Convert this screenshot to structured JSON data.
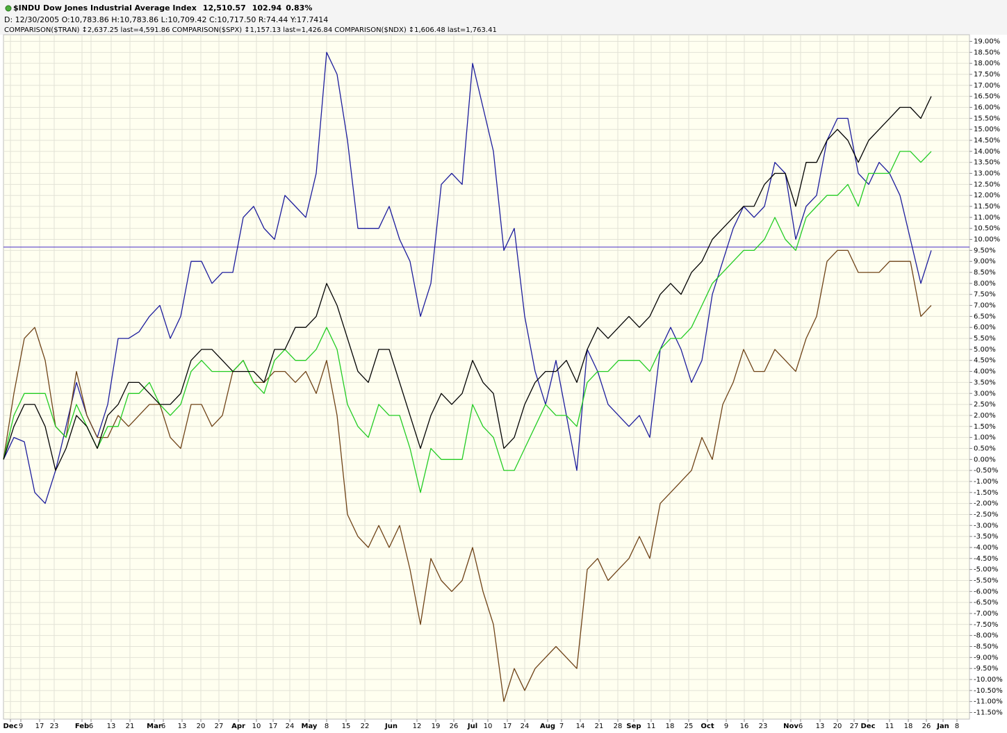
{
  "chart_data": {
    "type": "line",
    "title": "Dow Jones Industrial Average Index",
    "last": "12,510.57",
    "change": "102.94",
    "change_pct": "0.83%",
    "change_color": "#19b219",
    "ohlc": "D: 12/30/2005 O:10,783.86 H:10,783.86 L:10,709.42 C:10,717.50 R:74.44 Y:17.7414",
    "xlim": [
      0,
      278
    ],
    "ylim": [
      -11.8,
      19.3
    ],
    "grid": true,
    "hline": {
      "value": 9.65,
      "color": "#4b32c8"
    },
    "xticks": [
      {
        "value": 2,
        "label": "Dec"
      },
      {
        "value": 5,
        "label": "9"
      },
      {
        "value": 10.4,
        "label": "17"
      },
      {
        "value": 14.6,
        "label": "23"
      },
      {
        "value": 22.6,
        "label": "Feb"
      },
      {
        "value": 25.2,
        "label": "6"
      },
      {
        "value": 31,
        "label": "13"
      },
      {
        "value": 36.4,
        "label": "21"
      },
      {
        "value": 43.4,
        "label": "Mar"
      },
      {
        "value": 46,
        "label": "6"
      },
      {
        "value": 51.4,
        "label": "13"
      },
      {
        "value": 56.8,
        "label": "20"
      },
      {
        "value": 62,
        "label": "27"
      },
      {
        "value": 67.6,
        "label": "Apr"
      },
      {
        "value": 72.8,
        "label": "10"
      },
      {
        "value": 77.6,
        "label": "17"
      },
      {
        "value": 82.4,
        "label": "24"
      },
      {
        "value": 88,
        "label": "May"
      },
      {
        "value": 93,
        "label": "8"
      },
      {
        "value": 98.6,
        "label": "15"
      },
      {
        "value": 104,
        "label": "22"
      },
      {
        "value": 111.6,
        "label": "Jun"
      },
      {
        "value": 119,
        "label": "12"
      },
      {
        "value": 124.4,
        "label": "19"
      },
      {
        "value": 129.6,
        "label": "26"
      },
      {
        "value": 135,
        "label": "Jul"
      },
      {
        "value": 139.4,
        "label": "10"
      },
      {
        "value": 145,
        "label": "17"
      },
      {
        "value": 150,
        "label": "24"
      },
      {
        "value": 156.6,
        "label": "Aug"
      },
      {
        "value": 160.6,
        "label": "7"
      },
      {
        "value": 166,
        "label": "14"
      },
      {
        "value": 171.4,
        "label": "21"
      },
      {
        "value": 176.8,
        "label": "28"
      },
      {
        "value": 181.4,
        "label": "Sep"
      },
      {
        "value": 186.4,
        "label": "11"
      },
      {
        "value": 191.8,
        "label": "18"
      },
      {
        "value": 197.2,
        "label": "25"
      },
      {
        "value": 202.6,
        "label": "Oct"
      },
      {
        "value": 208,
        "label": "9"
      },
      {
        "value": 213.2,
        "label": "16"
      },
      {
        "value": 218.6,
        "label": "23"
      },
      {
        "value": 226.6,
        "label": "Nov"
      },
      {
        "value": 229.4,
        "label": "6"
      },
      {
        "value": 235,
        "label": "13"
      },
      {
        "value": 240,
        "label": "20"
      },
      {
        "value": 244.8,
        "label": "27"
      },
      {
        "value": 248.8,
        "label": "Dec"
      },
      {
        "value": 255,
        "label": "11"
      },
      {
        "value": 260.4,
        "label": "18"
      },
      {
        "value": 265.6,
        "label": "26"
      },
      {
        "value": 270.4,
        "label": "Jan"
      },
      {
        "value": 274.4,
        "label": "8"
      }
    ],
    "yticks": [
      {
        "value": 19,
        "label": "19.00%"
      },
      {
        "value": 18.5,
        "label": "18.50%"
      },
      {
        "value": 18,
        "label": "18.00%"
      },
      {
        "value": 17.5,
        "label": "17.50%"
      },
      {
        "value": 17,
        "label": "17.00%"
      },
      {
        "value": 16.5,
        "label": "16.50%"
      },
      {
        "value": 16,
        "label": "16.00%"
      },
      {
        "value": 15.5,
        "label": "15.50%"
      },
      {
        "value": 15,
        "label": "15.00%"
      },
      {
        "value": 14.5,
        "label": "14.50%"
      },
      {
        "value": 14,
        "label": "14.00%"
      },
      {
        "value": 13.5,
        "label": "13.50%"
      },
      {
        "value": 13,
        "label": "13.00%"
      },
      {
        "value": 12.5,
        "label": "12.50%"
      },
      {
        "value": 12,
        "label": "12.00%"
      },
      {
        "value": 11.5,
        "label": "11.50%"
      },
      {
        "value": 11,
        "label": "11.00%"
      },
      {
        "value": 10.5,
        "label": "10.50%"
      },
      {
        "value": 10,
        "label": "10.00%"
      },
      {
        "value": 9.5,
        "label": "9.50%"
      },
      {
        "value": 9,
        "label": "9.00%"
      },
      {
        "value": 8.5,
        "label": "8.50%"
      },
      {
        "value": 8,
        "label": "8.00%"
      },
      {
        "value": 7.5,
        "label": "7.50%"
      },
      {
        "value": 7,
        "label": "7.00%"
      },
      {
        "value": 6.5,
        "label": "6.50%"
      },
      {
        "value": 6,
        "label": "6.00%"
      },
      {
        "value": 5.5,
        "label": "5.50%"
      },
      {
        "value": 5,
        "label": "5.00%"
      },
      {
        "value": 4.5,
        "label": "4.50%"
      },
      {
        "value": 4,
        "label": "4.00%"
      },
      {
        "value": 3.5,
        "label": "3.50%"
      },
      {
        "value": 3,
        "label": "3.00%"
      },
      {
        "value": 2.5,
        "label": "2.50%"
      },
      {
        "value": 2,
        "label": "2.00%"
      },
      {
        "value": 1.5,
        "label": "1.50%"
      },
      {
        "value": 1,
        "label": "1.00%"
      },
      {
        "value": 0.5,
        "label": "0.50%"
      },
      {
        "value": 0,
        "label": "0.00%"
      },
      {
        "value": -0.5,
        "label": "-0.50%"
      },
      {
        "value": -1,
        "label": "-1.00%"
      },
      {
        "value": -1.5,
        "label": "-1.50%"
      },
      {
        "value": -2,
        "label": "-2.00%"
      },
      {
        "value": -2.5,
        "label": "-2.50%"
      },
      {
        "value": -3,
        "label": "-3.00%"
      },
      {
        "value": -3.5,
        "label": "-3.50%"
      },
      {
        "value": -4,
        "label": "-4.00%"
      },
      {
        "value": -4.5,
        "label": "-4.50%"
      },
      {
        "value": -5,
        "label": "-5.00%"
      },
      {
        "value": -5.5,
        "label": "-5.50%"
      },
      {
        "value": -6,
        "label": "-6.00%"
      },
      {
        "value": -6.5,
        "label": "-6.50%"
      },
      {
        "value": -7,
        "label": "-7.00%"
      },
      {
        "value": -7.5,
        "label": "-7.50%"
      },
      {
        "value": -8,
        "label": "-8.00%"
      },
      {
        "value": -8.5,
        "label": "-8.50%"
      },
      {
        "value": -9,
        "label": "-9.00%"
      },
      {
        "value": -9.5,
        "label": "-9.50%"
      },
      {
        "value": -10,
        "label": "-10.00%"
      },
      {
        "value": -10.5,
        "label": "-10.50%"
      },
      {
        "value": -11,
        "label": "-11.00%"
      },
      {
        "value": -11.5,
        "label": "-11.50%"
      }
    ],
    "x": [
      0,
      3,
      6,
      9,
      12,
      15,
      18,
      21,
      24,
      27,
      30,
      33,
      36,
      39,
      42,
      45,
      48,
      51,
      54,
      57,
      60,
      63,
      66,
      69,
      72,
      75,
      78,
      81,
      84,
      87,
      90,
      93,
      96,
      99,
      102,
      105,
      108,
      111,
      114,
      117,
      120,
      123,
      126,
      129,
      132,
      135,
      138,
      141,
      144,
      147,
      150,
      153,
      156,
      159,
      162,
      165,
      168,
      171,
      174,
      177,
      180,
      183,
      186,
      189,
      192,
      195,
      198,
      201,
      204,
      207,
      210,
      213,
      216,
      219,
      222,
      225,
      228,
      231,
      234,
      237,
      240,
      243,
      246,
      249,
      252,
      255,
      258,
      261,
      264,
      267
    ],
    "series": [
      {
        "name": "$INDU",
        "color": "#000000",
        "values": [
          0,
          1.5,
          2.5,
          2.5,
          1.5,
          -0.5,
          0.5,
          2,
          1.5,
          0.5,
          2,
          2.5,
          3.5,
          3.5,
          3,
          2.5,
          2.5,
          3,
          4.5,
          5,
          5,
          4.5,
          4,
          4,
          4,
          3.5,
          5,
          5,
          6,
          6,
          6.5,
          8,
          7,
          5.5,
          4,
          3.5,
          5,
          5,
          3.5,
          2,
          0.5,
          2,
          3,
          2.5,
          3,
          4.5,
          3.5,
          3,
          0.5,
          1,
          2.5,
          3.5,
          4,
          4,
          4.5,
          3.5,
          5,
          6,
          5.5,
          6,
          6.5,
          6,
          6.5,
          7.5,
          8,
          7.5,
          8.5,
          9,
          10,
          10.5,
          11,
          11.5,
          11.5,
          12.5,
          13,
          13,
          11.5,
          13.5,
          13.5,
          14.5,
          15,
          14.5,
          13.5,
          14.5,
          15,
          15.5,
          16,
          16,
          15.5,
          16.5
        ]
      },
      {
        "name": "COMPARISON($TRAN)",
        "legend_detail": "↕2,637.25 last=4,591.86",
        "color": "#1c1c9c",
        "values": [
          0,
          1,
          0.8,
          -1.5,
          -2,
          -0.5,
          1.5,
          3.5,
          2,
          1,
          2.5,
          5.5,
          5.5,
          5.8,
          6.5,
          7,
          5.5,
          6.5,
          9,
          9,
          8,
          8.5,
          8.5,
          11,
          11.5,
          10.5,
          10,
          12,
          11.5,
          11,
          13,
          18.5,
          17.5,
          14.5,
          10.5,
          10.5,
          10.5,
          11.5,
          10,
          9,
          6.5,
          8,
          12.5,
          13,
          12.5,
          18,
          16,
          14,
          9.5,
          10.5,
          6.5,
          4,
          2.5,
          4.5,
          2,
          -0.5,
          5,
          4,
          2.5,
          2,
          1.5,
          2,
          1,
          5,
          6,
          5,
          3.5,
          4.5,
          7.5,
          9,
          10.5,
          11.5,
          11,
          11.5,
          13.5,
          13,
          10,
          11.5,
          12,
          14.5,
          15.5,
          15.5,
          13,
          12.5,
          13.5,
          13,
          12,
          10,
          8,
          9.5
        ]
      },
      {
        "name": "COMPARISON($SPX)",
        "legend_detail": "↕1,157.13 last=1,426.84",
        "color": "#22cc22",
        "values": [
          0,
          2,
          3,
          3,
          3,
          1.5,
          1,
          2.5,
          1.5,
          0.5,
          1.5,
          1.5,
          3,
          3,
          3.5,
          2.5,
          2,
          2.5,
          4,
          4.5,
          4,
          4,
          4,
          4.5,
          3.5,
          3,
          4.5,
          5,
          4.5,
          4.5,
          5,
          6,
          5,
          2.5,
          1.5,
          1,
          2.5,
          2,
          2,
          0.5,
          -1.5,
          0.5,
          0,
          0,
          0,
          2.5,
          1.5,
          1,
          -0.5,
          -0.5,
          0.5,
          1.5,
          2.5,
          2,
          2,
          1.5,
          3.5,
          4,
          4,
          4.5,
          4.5,
          4.5,
          4,
          5,
          5.5,
          5.5,
          6,
          7,
          8,
          8.5,
          9,
          9.5,
          9.5,
          10,
          11,
          10,
          9.5,
          11,
          11.5,
          12,
          12,
          12.5,
          11.5,
          13,
          13,
          13,
          14,
          14,
          13.5,
          14
        ]
      },
      {
        "name": "COMPARISON($NDX)",
        "legend_detail": "↕1,606.48 last=1,763.41",
        "color": "#6e4216",
        "values": [
          0,
          3,
          5.5,
          6,
          4.5,
          1.5,
          1,
          4,
          2,
          1,
          1,
          2,
          1.5,
          2,
          2.5,
          2.5,
          1,
          0.5,
          2.5,
          2.5,
          1.5,
          2,
          4,
          4.5,
          3.5,
          3.5,
          4,
          4,
          3.5,
          4,
          3,
          4.5,
          2,
          -2.5,
          -3.5,
          -4,
          -3,
          -4,
          -3,
          -5,
          -7.5,
          -4.5,
          -5.5,
          -6,
          -5.5,
          -4,
          -6,
          -7.5,
          -11,
          -9.5,
          -10.5,
          -9.5,
          -9,
          -8.5,
          -9,
          -9.5,
          -5,
          -4.5,
          -5.5,
          -5,
          -4.5,
          -3.5,
          -4.5,
          -2,
          -1.5,
          -1,
          -0.5,
          1,
          0,
          2.5,
          3.5,
          5,
          4,
          4,
          5,
          4.5,
          4,
          5.5,
          6.5,
          9,
          9.5,
          9.5,
          8.5,
          8.5,
          8.5,
          9,
          9,
          9,
          6.5,
          7
        ]
      }
    ]
  }
}
